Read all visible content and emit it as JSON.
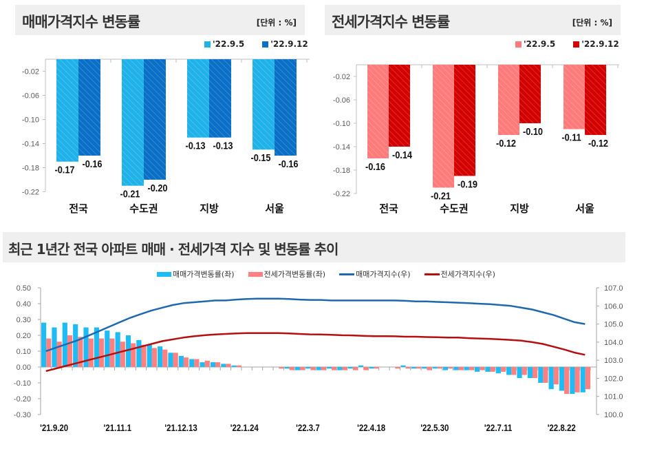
{
  "colors": {
    "sale_prev": "#1fb2e8",
    "sale_curr": "#0a6fc6",
    "jeonse_prev": "#ff7a7a",
    "jeonse_curr": "#d40000",
    "sale_rate": "#1fbbf5",
    "jeonse_rate": "#ff8080",
    "sale_index": "#1e68b0",
    "jeonse_index": "#b50e0e",
    "axis_text": "#595959",
    "title_bg": "#efefef"
  },
  "chart_data": [
    {
      "type": "bar",
      "title": "매매가격지수 변동률",
      "unit_label": "[단위 : %]",
      "categories": [
        "전국",
        "수도권",
        "지방",
        "서울"
      ],
      "series": [
        {
          "name": "'22.9.5",
          "values": [
            -0.17,
            -0.21,
            -0.13,
            -0.15
          ]
        },
        {
          "name": "'22.9.12",
          "values": [
            -0.16,
            -0.2,
            -0.13,
            -0.16
          ]
        }
      ],
      "data_labels": [
        [
          "-0.17",
          "-0.21",
          "-0.13",
          "-0.15"
        ],
        [
          "-0.16",
          "-0.20",
          "-0.13",
          "-0.16"
        ]
      ],
      "ylim": [
        -0.22,
        0.0
      ],
      "yticks": [
        -0.02,
        -0.06,
        -0.1,
        -0.14,
        -0.18,
        -0.22
      ],
      "ytick_labels": [
        "-0.02",
        "-0.06",
        "-0.10",
        "-0.14",
        "-0.18",
        "-0.22"
      ],
      "legend_position": "top-right",
      "xlabel": "",
      "ylabel": ""
    },
    {
      "type": "bar",
      "title": "전세가격지수 변동률",
      "unit_label": "[단위 : %]",
      "categories": [
        "전국",
        "수도권",
        "지방",
        "서울"
      ],
      "series": [
        {
          "name": "'22.9.5",
          "values": [
            -0.16,
            -0.21,
            -0.12,
            -0.11
          ]
        },
        {
          "name": "'22.9.12",
          "values": [
            -0.14,
            -0.19,
            -0.1,
            -0.12
          ]
        }
      ],
      "data_labels": [
        [
          "-0.16",
          "-0.21",
          "-0.12",
          "-0.11"
        ],
        [
          "-0.14",
          "-0.19",
          "-0.10",
          "-0.12"
        ]
      ],
      "ylim": [
        -0.22,
        0.0
      ],
      "yticks": [
        -0.02,
        -0.06,
        -0.1,
        -0.14,
        -0.18,
        -0.22
      ],
      "ytick_labels": [
        "-0.02",
        "-0.06",
        "-0.10",
        "-0.14",
        "-0.18",
        "-0.22"
      ],
      "legend_position": "top-right",
      "xlabel": "",
      "ylabel": ""
    },
    {
      "type": "bar+line",
      "title": "최근 1년간 전국 아파트 매매 · 전세가격 지수 및 변동률 추이",
      "legend": [
        "매매가격변동률(좌)",
        "전세가격변동률(좌)",
        "매매가격지수(우)",
        "전세가격지수(우)"
      ],
      "legend_position": "top",
      "x_tick_labels": [
        "'21.9.20",
        "'21.11.1",
        "'21.12.13",
        "'22.1.24",
        "'22.3.7",
        "'22.4.18",
        "'22.5.30",
        "'22.7.11",
        "'22.8.22"
      ],
      "x_count": 52,
      "y_left": {
        "ylim": [
          -0.3,
          0.5
        ],
        "ticks": [
          "0.50",
          "0.40",
          "0.30",
          "0.20",
          "0.10",
          "0.00",
          "-0.10",
          "-0.20",
          "-0.30"
        ]
      },
      "y_right": {
        "ylim": [
          100.0,
          107.0
        ],
        "ticks": [
          "107.0",
          "106.0",
          "105.0",
          "104.0",
          "103.0",
          "102.0",
          "101.0",
          "100.0"
        ]
      },
      "series": [
        {
          "name": "매매가격변동률(좌)",
          "kind": "bar",
          "axis": "left",
          "values": [
            0.28,
            0.25,
            0.28,
            0.27,
            0.25,
            0.25,
            0.23,
            0.22,
            0.2,
            0.17,
            0.14,
            0.13,
            0.09,
            0.07,
            0.05,
            0.03,
            0.03,
            0.02,
            0.01,
            0.0,
            0.0,
            0.0,
            0.0,
            -0.01,
            -0.02,
            -0.01,
            -0.02,
            -0.01,
            -0.02,
            -0.01,
            0.01,
            -0.01,
            0.0,
            0.0,
            0.01,
            -0.01,
            -0.01,
            -0.01,
            -0.02,
            -0.02,
            -0.02,
            -0.03,
            -0.03,
            -0.04,
            -0.05,
            -0.07,
            -0.07,
            -0.1,
            -0.14,
            -0.15,
            -0.17,
            -0.16
          ]
        },
        {
          "name": "전세가격변동률(좌)",
          "kind": "bar",
          "axis": "left",
          "values": [
            0.18,
            0.16,
            0.2,
            0.19,
            0.18,
            0.18,
            0.18,
            0.16,
            0.15,
            0.14,
            0.12,
            0.11,
            0.09,
            0.06,
            0.05,
            0.04,
            0.03,
            0.02,
            0.01,
            0.0,
            0.0,
            0.0,
            -0.01,
            -0.02,
            -0.02,
            -0.02,
            -0.02,
            -0.02,
            -0.02,
            -0.02,
            -0.02,
            -0.01,
            0.0,
            -0.01,
            -0.01,
            -0.01,
            -0.02,
            -0.01,
            -0.01,
            -0.02,
            -0.02,
            -0.02,
            -0.03,
            -0.03,
            -0.05,
            -0.05,
            -0.07,
            -0.1,
            -0.11,
            -0.17,
            -0.16,
            -0.14
          ]
        },
        {
          "name": "매매가격지수(우)",
          "kind": "line",
          "axis": "right",
          "values": [
            103.5,
            103.7,
            103.9,
            104.1,
            104.35,
            104.6,
            104.85,
            105.1,
            105.35,
            105.55,
            105.75,
            105.9,
            106.05,
            106.15,
            106.2,
            106.25,
            106.3,
            106.3,
            106.35,
            106.38,
            106.4,
            106.4,
            106.4,
            106.38,
            106.35,
            106.33,
            106.33,
            106.3,
            106.3,
            106.3,
            106.3,
            106.3,
            106.3,
            106.3,
            106.28,
            106.25,
            106.25,
            106.22,
            106.2,
            106.18,
            106.15,
            106.12,
            106.1,
            106.05,
            106.0,
            105.9,
            105.8,
            105.65,
            105.5,
            105.3,
            105.1,
            105.0
          ]
        },
        {
          "name": "전세가격지수(우)",
          "kind": "line",
          "axis": "right",
          "values": [
            102.4,
            102.55,
            102.7,
            102.85,
            103.0,
            103.15,
            103.3,
            103.45,
            103.6,
            103.75,
            103.9,
            104.05,
            104.15,
            104.25,
            104.32,
            104.38,
            104.42,
            104.45,
            104.48,
            104.5,
            104.5,
            104.5,
            104.5,
            104.48,
            104.45,
            104.43,
            104.42,
            104.4,
            104.38,
            104.37,
            104.35,
            104.33,
            104.33,
            104.32,
            104.3,
            104.3,
            104.28,
            104.27,
            104.25,
            104.25,
            104.22,
            104.2,
            104.18,
            104.15,
            104.12,
            104.08,
            104.0,
            103.9,
            103.75,
            103.6,
            103.42,
            103.3
          ]
        }
      ]
    }
  ]
}
